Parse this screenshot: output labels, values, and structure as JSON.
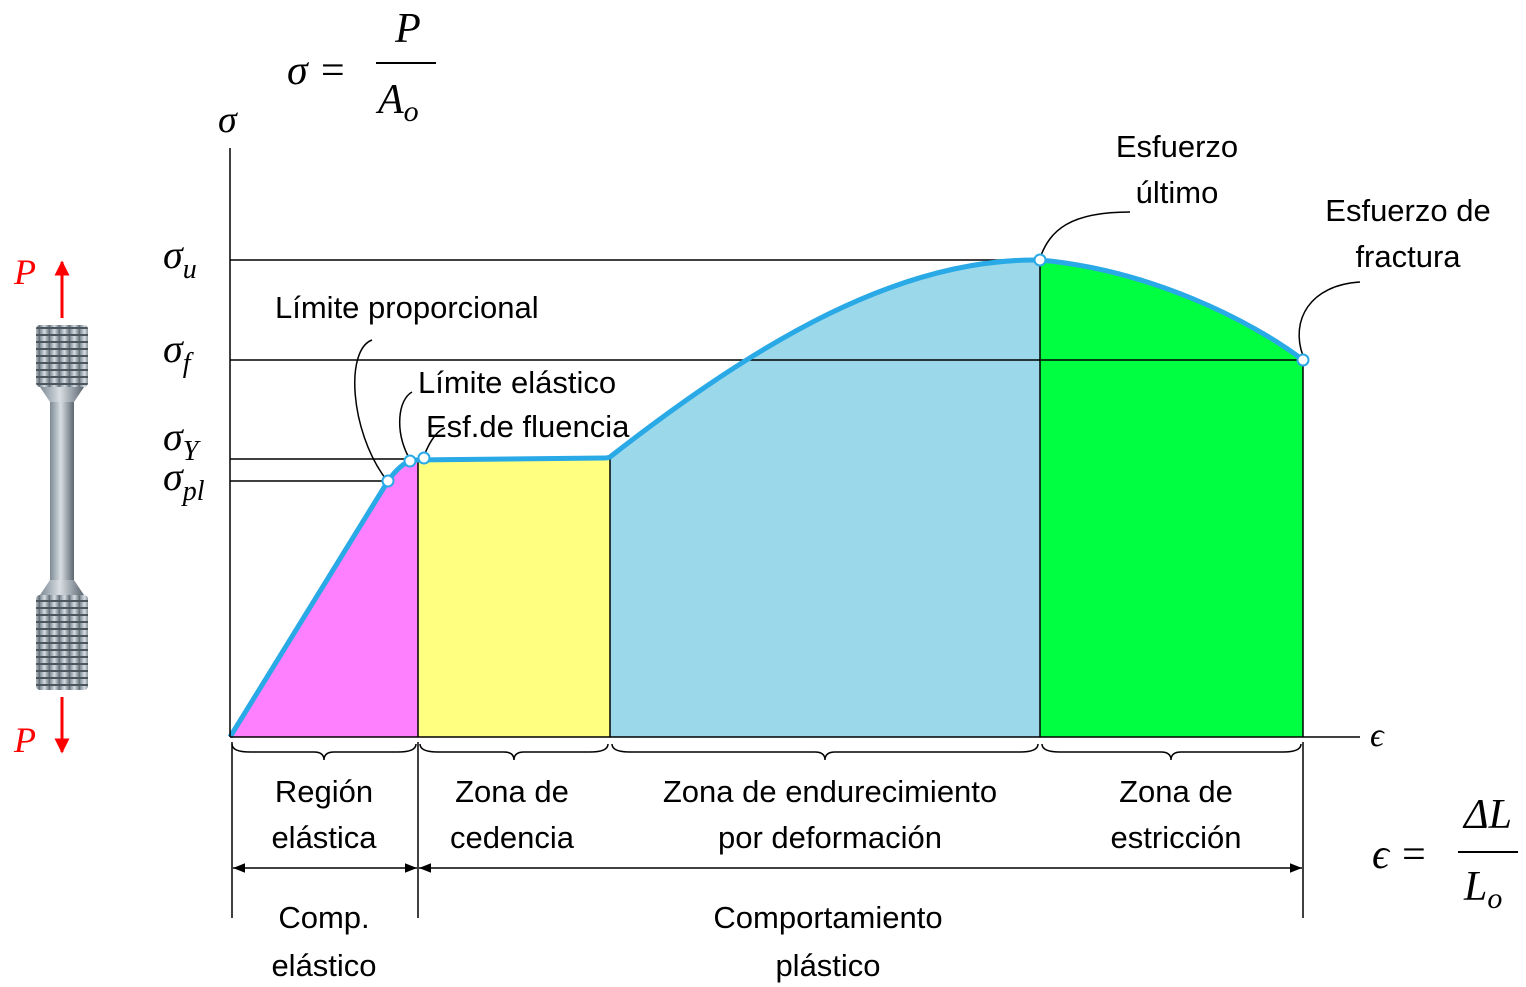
{
  "formulas": {
    "stress": {
      "lhs": "σ =",
      "num": "P",
      "den": "A",
      "den_sub": "o"
    },
    "strain": {
      "lhs": "ϵ =",
      "num": "ΔL",
      "den": "L",
      "den_sub": "o"
    }
  },
  "axes": {
    "y": "σ",
    "x": "ϵ"
  },
  "levels": [
    {
      "symbol": "σ",
      "sub": "u"
    },
    {
      "symbol": "σ",
      "sub": "f"
    },
    {
      "symbol": "σ",
      "sub": "Y"
    },
    {
      "symbol": "σ",
      "sub": "pl"
    }
  ],
  "annotations": {
    "proportional": "Límite proporcional",
    "elastic": "Límite elástico",
    "yield": "Esf.de fluencia",
    "ultimate": [
      "Esfuerzo",
      "último"
    ],
    "fracture": [
      "Esfuerzo de",
      "fractura"
    ]
  },
  "zones": [
    [
      "Región",
      "elástica"
    ],
    [
      "Zona de",
      "cedencia"
    ],
    [
      "Zona de endurecimiento",
      "por deformación"
    ],
    [
      "Zona de",
      "estricción"
    ]
  ],
  "behaviors": [
    [
      "Comp.",
      "elástico"
    ],
    [
      "Comportamiento",
      "plástico"
    ]
  ],
  "specimen": {
    "top_load": "P",
    "bottom_load": "P"
  }
}
